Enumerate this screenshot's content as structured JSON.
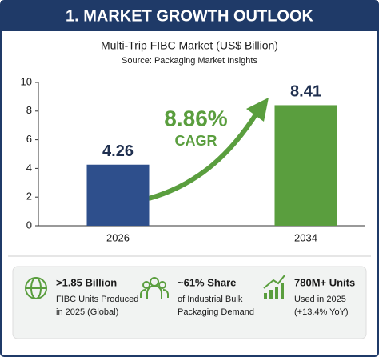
{
  "header": {
    "title": "1. MARKET GROWTH OUTLOOK"
  },
  "chart_data": {
    "type": "bar",
    "title": "Multi-Trip FIBC Market (US$ Billion)",
    "subtitle": "Source: Packaging Market Insights",
    "categories": [
      "2026",
      "2034"
    ],
    "values": [
      4.26,
      8.41
    ],
    "colors": [
      "#2e4f8c",
      "#5a9e3e"
    ],
    "ylim": [
      0,
      10
    ],
    "yticks": [
      0,
      2,
      4,
      6,
      8,
      10
    ],
    "grid": false,
    "annotations": [
      "8.86%",
      "CAGR"
    ]
  },
  "stats": [
    {
      "title": ">1.85 Billion",
      "lines": [
        "FIBC Units Produced",
        "in 2025 (Global)"
      ]
    },
    {
      "title": "~61% Share",
      "lines": [
        "of Industrial Bulk",
        "Packaging Demand"
      ]
    },
    {
      "title": "780M+ Units",
      "lines": [
        "Used in 2025",
        "(+13.4% YoY)"
      ]
    }
  ]
}
